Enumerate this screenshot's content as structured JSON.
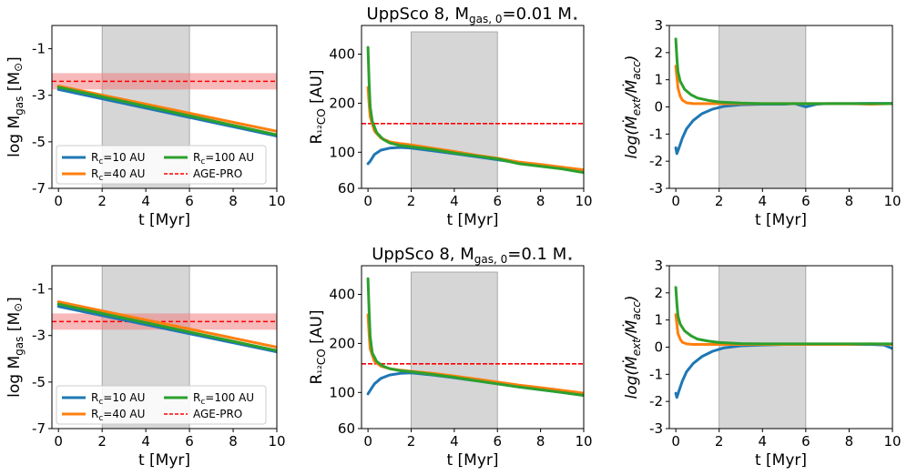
{
  "figure": {
    "colors": {
      "rc10": "#1f77b4",
      "rc40": "#ff7f0e",
      "rc100": "#2ca02c",
      "agepro": "#ff0000",
      "band": "#f08080",
      "shade": "#c8c8c8"
    }
  },
  "chart_data": [
    {
      "type": "line",
      "panel": "top-left",
      "title": "",
      "xlabel": "t [Myr]",
      "ylabel": "log M_gas [M_sun]",
      "xlim": [
        -0.3,
        10
      ],
      "ylim": [
        -7,
        0
      ],
      "yticks": [
        -1,
        -3,
        -5,
        -7
      ],
      "xticks": [
        0,
        2,
        4,
        6,
        8,
        10
      ],
      "shaded_x": [
        2,
        6
      ],
      "agepro": {
        "value": -2.4,
        "band": [
          -2.75,
          -2.05
        ]
      },
      "legend": {
        "position": "lower-left",
        "entries": [
          "R_c=10 AU",
          "R_c=40 AU",
          "R_c=100 AU",
          "AGE-PRO"
        ]
      },
      "series": [
        {
          "name": "R_c=10 AU",
          "color_key": "rc10",
          "x": [
            0,
            10
          ],
          "y": [
            -2.75,
            -4.75
          ]
        },
        {
          "name": "R_c=40 AU",
          "color_key": "rc40",
          "x": [
            0,
            10
          ],
          "y": [
            -2.6,
            -4.55
          ]
        },
        {
          "name": "R_c=100 AU",
          "color_key": "rc100",
          "x": [
            0,
            10
          ],
          "y": [
            -2.65,
            -4.7
          ]
        }
      ]
    },
    {
      "type": "line",
      "panel": "top-middle",
      "title_main": "UppSco 8,  M",
      "title_sub": "gas, 0",
      "title_tail": "=0.01 M",
      "title_star": "⋆",
      "xlabel": "t [Myr]",
      "ylabel": "R_12CO [AU]",
      "yscale": "log",
      "xlim": [
        -0.3,
        10
      ],
      "ylim": [
        60,
        600
      ],
      "yticks": [
        60,
        100,
        200,
        400
      ],
      "xticks": [
        0,
        2,
        4,
        6,
        8,
        10
      ],
      "shaded_x": [
        2,
        6
      ],
      "hline": 150,
      "series": [
        {
          "name": "R_c=10 AU",
          "color_key": "rc10",
          "x": [
            0,
            0.1,
            0.3,
            0.6,
            1,
            1.5,
            2,
            3,
            4,
            5,
            6,
            7,
            8,
            9,
            10
          ],
          "y": [
            85,
            88,
            97,
            103,
            106,
            107,
            106,
            102,
            98,
            94,
            90,
            86,
            83,
            80,
            77
          ]
        },
        {
          "name": "R_c=40 AU",
          "color_key": "rc40",
          "x": [
            0,
            0.05,
            0.1,
            0.3,
            0.6,
            1,
            1.5,
            2,
            3,
            4,
            5,
            6,
            7,
            8,
            9,
            10
          ],
          "y": [
            250,
            200,
            165,
            135,
            122,
            116,
            113,
            111,
            106,
            101,
            96,
            92,
            87,
            84,
            81,
            78
          ]
        },
        {
          "name": "R_c=100 AU",
          "color_key": "rc100",
          "x": [
            0,
            0.05,
            0.1,
            0.2,
            0.4,
            0.7,
            1,
            1.5,
            2,
            3,
            4,
            5,
            6,
            7,
            8,
            9,
            10
          ],
          "y": [
            440,
            270,
            190,
            155,
            132,
            120,
            114,
            110,
            108,
            104,
            99,
            95,
            91,
            85,
            82,
            79,
            75
          ]
        }
      ]
    },
    {
      "type": "line",
      "panel": "top-right",
      "title": "",
      "xlabel": "t [Myr]",
      "ylabel": "log(Mdot_ext/Mdot_acc)",
      "xlim": [
        -0.3,
        10
      ],
      "ylim": [
        -3,
        3
      ],
      "yticks": [
        -3,
        -2,
        -1,
        0,
        1,
        2,
        3
      ],
      "xticks": [
        0,
        2,
        4,
        6,
        8,
        10
      ],
      "shaded_x": [
        2,
        6
      ],
      "series": [
        {
          "name": "R_c=10 AU",
          "color_key": "rc10",
          "x": [
            0,
            0.05,
            0.15,
            0.3,
            0.5,
            0.8,
            1.2,
            1.7,
            2.2,
            3,
            4,
            5,
            5.5,
            6,
            6.5,
            7,
            8,
            9,
            10
          ],
          "y": [
            -1.5,
            -1.72,
            -1.5,
            -1.15,
            -0.8,
            -0.5,
            -0.25,
            -0.08,
            0.02,
            0.08,
            0.1,
            0.1,
            0.12,
            0.0,
            0.1,
            0.12,
            0.12,
            0.13,
            0.13
          ]
        },
        {
          "name": "R_c=40 AU",
          "color_key": "rc40",
          "x": [
            0,
            0.05,
            0.1,
            0.2,
            0.3,
            0.5,
            0.8,
            1.2,
            2,
            3,
            4,
            5,
            6,
            7,
            8,
            9,
            10
          ],
          "y": [
            1.5,
            1.1,
            0.7,
            0.4,
            0.25,
            0.15,
            0.12,
            0.12,
            0.12,
            0.12,
            0.12,
            0.12,
            0.12,
            0.12,
            0.12,
            0.1,
            0.12
          ]
        },
        {
          "name": "R_c=100 AU",
          "color_key": "rc100",
          "x": [
            0,
            0.05,
            0.1,
            0.2,
            0.4,
            0.7,
            1,
            1.5,
            2,
            3,
            4,
            5,
            6,
            7,
            8,
            9,
            10
          ],
          "y": [
            2.5,
            1.8,
            1.3,
            0.95,
            0.65,
            0.45,
            0.33,
            0.24,
            0.18,
            0.14,
            0.12,
            0.12,
            0.12,
            0.12,
            0.12,
            0.12,
            0.12
          ]
        }
      ]
    },
    {
      "type": "line",
      "panel": "bottom-left",
      "title": "",
      "xlabel": "t [Myr]",
      "ylabel": "log M_gas [M_sun]",
      "xlim": [
        -0.3,
        10
      ],
      "ylim": [
        -7,
        0
      ],
      "yticks": [
        -1,
        -3,
        -5,
        -7
      ],
      "xticks": [
        0,
        2,
        4,
        6,
        8,
        10
      ],
      "shaded_x": [
        2,
        6
      ],
      "agepro": {
        "value": -2.4,
        "band": [
          -2.75,
          -2.05
        ]
      },
      "legend": {
        "position": "lower-left",
        "entries": [
          "R_c=10 AU",
          "R_c=40 AU",
          "R_c=100 AU",
          "AGE-PRO"
        ]
      },
      "series": [
        {
          "name": "R_c=10 AU",
          "color_key": "rc10",
          "x": [
            0,
            10
          ],
          "y": [
            -1.75,
            -3.7
          ]
        },
        {
          "name": "R_c=40 AU",
          "color_key": "rc40",
          "x": [
            0,
            10
          ],
          "y": [
            -1.55,
            -3.5
          ]
        },
        {
          "name": "R_c=100 AU",
          "color_key": "rc100",
          "x": [
            0,
            10
          ],
          "y": [
            -1.65,
            -3.65
          ]
        }
      ]
    },
    {
      "type": "line",
      "panel": "bottom-middle",
      "title_main": "UppSco 8,  M",
      "title_sub": "gas, 0",
      "title_tail": "=0.1 M",
      "title_star": "⋆",
      "xlabel": "t [Myr]",
      "ylabel": "R_12CO [AU]",
      "yscale": "log",
      "xlim": [
        -0.3,
        10
      ],
      "ylim": [
        60,
        600
      ],
      "yticks": [
        60,
        100,
        200,
        400
      ],
      "xticks": [
        0,
        2,
        4,
        6,
        8,
        10
      ],
      "shaded_x": [
        2,
        6
      ],
      "hline": 150,
      "series": [
        {
          "name": "R_c=10 AU",
          "color_key": "rc10",
          "x": [
            0,
            0.1,
            0.3,
            0.6,
            1,
            1.5,
            2,
            3,
            4,
            5,
            6,
            7,
            8,
            9,
            10
          ],
          "y": [
            98,
            103,
            113,
            122,
            128,
            131,
            132,
            128,
            123,
            118,
            113,
            108,
            104,
            100,
            96
          ]
        },
        {
          "name": "R_c=40 AU",
          "color_key": "rc40",
          "x": [
            0,
            0.05,
            0.1,
            0.3,
            0.6,
            1,
            1.5,
            2,
            3,
            4,
            5,
            6,
            7,
            8,
            9,
            10
          ],
          "y": [
            300,
            230,
            185,
            155,
            145,
            140,
            137,
            135,
            131,
            126,
            121,
            116,
            111,
            107,
            103,
            99
          ]
        },
        {
          "name": "R_c=100 AU",
          "color_key": "rc100",
          "x": [
            0,
            0.05,
            0.1,
            0.2,
            0.4,
            0.7,
            1,
            1.5,
            2,
            3,
            4,
            5,
            6,
            7,
            8,
            9,
            10
          ],
          "y": [
            500,
            320,
            220,
            175,
            155,
            145,
            140,
            136,
            134,
            129,
            124,
            118,
            113,
            108,
            104,
            100,
            96
          ]
        }
      ]
    },
    {
      "type": "line",
      "panel": "bottom-right",
      "title": "",
      "xlabel": "t [Myr]",
      "ylabel": "log(Mdot_ext/Mdot_acc)",
      "xlim": [
        -0.3,
        10
      ],
      "ylim": [
        -3,
        3
      ],
      "yticks": [
        -3,
        -2,
        -1,
        0,
        1,
        2,
        3
      ],
      "xticks": [
        0,
        2,
        4,
        6,
        8,
        10
      ],
      "shaded_x": [
        2,
        6
      ],
      "series": [
        {
          "name": "R_c=10 AU",
          "color_key": "rc10",
          "x": [
            0,
            0.05,
            0.15,
            0.3,
            0.5,
            0.8,
            1.2,
            1.7,
            2.2,
            3,
            4,
            5,
            6,
            7,
            8,
            9,
            9.6,
            10
          ],
          "y": [
            -1.7,
            -1.85,
            -1.6,
            -1.25,
            -0.9,
            -0.6,
            -0.35,
            -0.15,
            -0.03,
            0.05,
            0.08,
            0.1,
            0.1,
            0.1,
            0.1,
            0.1,
            0.08,
            -0.05
          ]
        },
        {
          "name": "R_c=40 AU",
          "color_key": "rc40",
          "x": [
            0,
            0.05,
            0.1,
            0.2,
            0.3,
            0.5,
            0.8,
            1.2,
            2,
            3,
            4,
            5,
            6,
            7,
            8,
            9,
            10
          ],
          "y": [
            1.2,
            0.85,
            0.5,
            0.3,
            0.18,
            0.12,
            0.1,
            0.1,
            0.1,
            0.1,
            0.1,
            0.1,
            0.1,
            0.1,
            0.1,
            0.12,
            0.1
          ]
        },
        {
          "name": "R_c=100 AU",
          "color_key": "rc100",
          "x": [
            0,
            0.05,
            0.1,
            0.2,
            0.4,
            0.7,
            1,
            1.5,
            2,
            3,
            4,
            5,
            6,
            7,
            8,
            9,
            10
          ],
          "y": [
            2.2,
            1.6,
            1.15,
            0.85,
            0.6,
            0.42,
            0.3,
            0.22,
            0.17,
            0.13,
            0.12,
            0.12,
            0.12,
            0.12,
            0.12,
            0.12,
            0.12
          ]
        }
      ]
    }
  ]
}
